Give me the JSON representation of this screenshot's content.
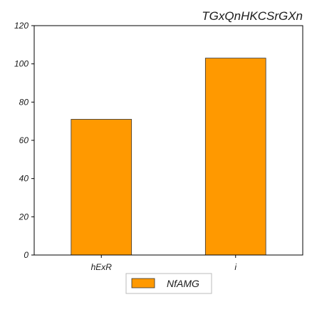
{
  "chart_data": {
    "type": "bar",
    "title": "TGxQnHKCSrGXn",
    "xlabel": "",
    "ylabel": "",
    "categories": [
      "hExR",
      "i"
    ],
    "series": [
      {
        "name": "NfAMG",
        "values": [
          71,
          103
        ],
        "color": "#ff9900"
      }
    ],
    "ylim": [
      0,
      120
    ],
    "yticks": [
      0,
      20,
      40,
      60,
      80,
      100,
      120
    ],
    "grid": false,
    "legend_position": "bottom-center"
  }
}
